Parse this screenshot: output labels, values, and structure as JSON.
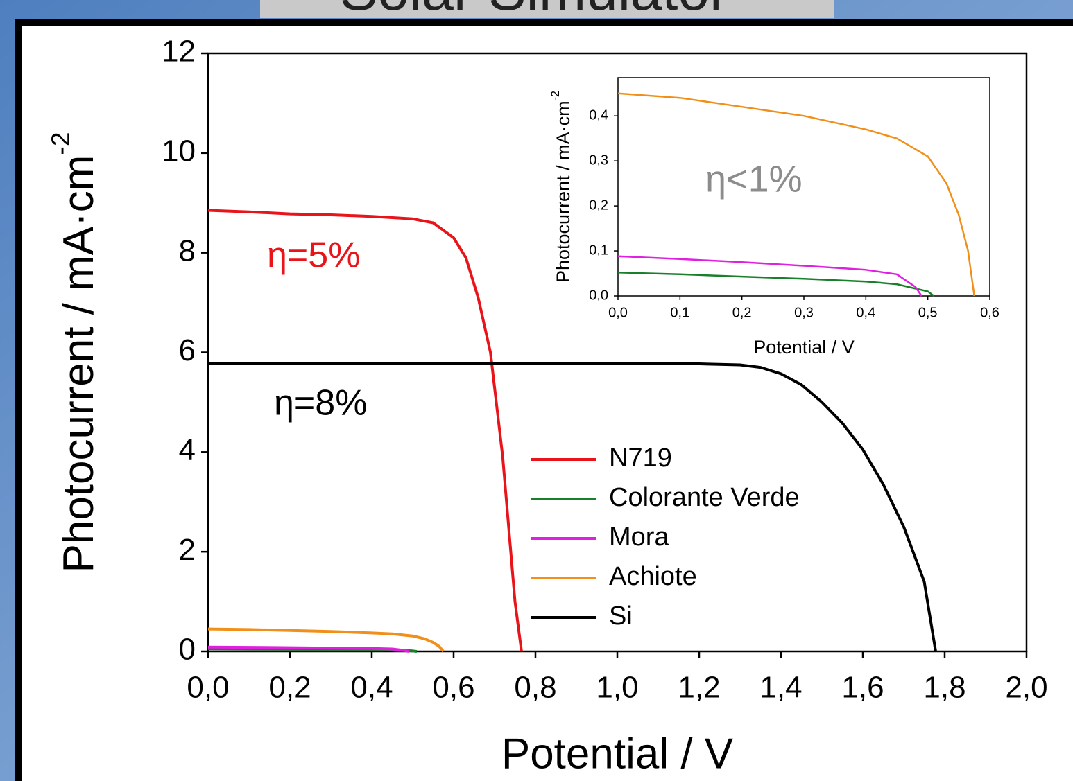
{
  "slide": {
    "title": "Solar Simulator"
  },
  "chart_data": [
    {
      "type": "line",
      "xlabel": "Potential / V",
      "ylabel": {
        "text": "Photocurrent / mA·cm",
        "sup": "-2"
      },
      "xlim": [
        0,
        2
      ],
      "ylim": [
        0,
        12
      ],
      "xticks": [
        {
          "value": 0,
          "label": "0,0"
        },
        {
          "value": 0.2,
          "label": "0,2"
        },
        {
          "value": 0.4,
          "label": "0,4"
        },
        {
          "value": 0.6,
          "label": "0,6"
        },
        {
          "value": 0.8,
          "label": "0,8"
        },
        {
          "value": 1.0,
          "label": "1,0"
        },
        {
          "value": 1.2,
          "label": "1,2"
        },
        {
          "value": 1.4,
          "label": "1,4"
        },
        {
          "value": 1.6,
          "label": "1,6"
        },
        {
          "value": 1.8,
          "label": "1,8"
        },
        {
          "value": 2.0,
          "label": "2,0"
        }
      ],
      "yticks": [
        0,
        2,
        4,
        6,
        8,
        10,
        12
      ],
      "series": [
        {
          "name": "N719",
          "color": "#e8141a",
          "x": [
            0,
            0.1,
            0.2,
            0.3,
            0.4,
            0.5,
            0.55,
            0.6,
            0.63,
            0.66,
            0.69,
            0.72,
            0.75,
            0.766
          ],
          "values": [
            8.85,
            8.82,
            8.78,
            8.76,
            8.73,
            8.68,
            8.6,
            8.3,
            7.9,
            7.1,
            6.0,
            3.9,
            1.0,
            0
          ]
        },
        {
          "name": "Colorante Verde",
          "color": "#1a7f2a",
          "x": [
            0,
            0.1,
            0.2,
            0.3,
            0.4,
            0.45,
            0.5,
            0.51
          ],
          "values": [
            0.052,
            0.048,
            0.043,
            0.038,
            0.032,
            0.026,
            0.01,
            0
          ]
        },
        {
          "name": "Mora",
          "color": "#e020e0",
          "x": [
            0,
            0.1,
            0.2,
            0.3,
            0.4,
            0.45,
            0.48,
            0.49
          ],
          "values": [
            0.088,
            0.082,
            0.075,
            0.067,
            0.058,
            0.048,
            0.02,
            0
          ]
        },
        {
          "name": "Achiote",
          "color": "#f0901a",
          "x": [
            0,
            0.1,
            0.2,
            0.3,
            0.4,
            0.45,
            0.5,
            0.53,
            0.55,
            0.565,
            0.575
          ],
          "values": [
            0.45,
            0.44,
            0.42,
            0.4,
            0.37,
            0.35,
            0.31,
            0.25,
            0.18,
            0.1,
            0
          ]
        },
        {
          "name": "Si",
          "color": "#000000",
          "x": [
            0,
            0.4,
            0.8,
            1.2,
            1.3,
            1.35,
            1.4,
            1.45,
            1.5,
            1.55,
            1.6,
            1.65,
            1.7,
            1.75,
            1.778
          ],
          "values": [
            5.77,
            5.78,
            5.78,
            5.77,
            5.75,
            5.7,
            5.57,
            5.35,
            5.0,
            4.58,
            4.05,
            3.35,
            2.5,
            1.4,
            0
          ]
        }
      ],
      "annotations": [
        {
          "text": "η=5%",
          "color": "#e8141a"
        },
        {
          "text": "η=8%",
          "color": "#000000"
        }
      ],
      "legend": "center right"
    },
    {
      "type": "line",
      "xlabel": "Potential / V",
      "ylabel": {
        "text": "Photocurrent / mA·cm",
        "sup": "-2"
      },
      "xlim": [
        0,
        0.6
      ],
      "ylim": [
        0,
        0.485
      ],
      "xticks": [
        {
          "value": 0,
          "label": "0,0"
        },
        {
          "value": 0.1,
          "label": "0,1"
        },
        {
          "value": 0.2,
          "label": "0,2"
        },
        {
          "value": 0.3,
          "label": "0,3"
        },
        {
          "value": 0.4,
          "label": "0,4"
        },
        {
          "value": 0.5,
          "label": "0,5"
        },
        {
          "value": 0.6,
          "label": "0,6"
        }
      ],
      "yticks": [
        {
          "value": 0,
          "label": "0,0"
        },
        {
          "value": 0.1,
          "label": "0,1"
        },
        {
          "value": 0.2,
          "label": "0,2"
        },
        {
          "value": 0.3,
          "label": "0,3"
        },
        {
          "value": 0.4,
          "label": "0,4"
        }
      ],
      "series": [
        {
          "color": "#1a7f2a",
          "x": [
            0,
            0.1,
            0.2,
            0.3,
            0.4,
            0.45,
            0.5,
            0.51
          ],
          "values": [
            0.052,
            0.048,
            0.043,
            0.038,
            0.032,
            0.026,
            0.01,
            0
          ]
        },
        {
          "color": "#e020e0",
          "x": [
            0,
            0.1,
            0.2,
            0.3,
            0.4,
            0.45,
            0.48,
            0.49
          ],
          "values": [
            0.088,
            0.082,
            0.075,
            0.067,
            0.058,
            0.048,
            0.02,
            0
          ]
        },
        {
          "color": "#f0901a",
          "x": [
            0,
            0.1,
            0.2,
            0.3,
            0.4,
            0.45,
            0.5,
            0.53,
            0.55,
            0.565,
            0.575
          ],
          "values": [
            0.45,
            0.44,
            0.42,
            0.4,
            0.37,
            0.35,
            0.31,
            0.25,
            0.18,
            0.1,
            0
          ]
        }
      ],
      "annotations": [
        {
          "text": "η<1%",
          "color": "#8c8c8c"
        }
      ]
    }
  ]
}
